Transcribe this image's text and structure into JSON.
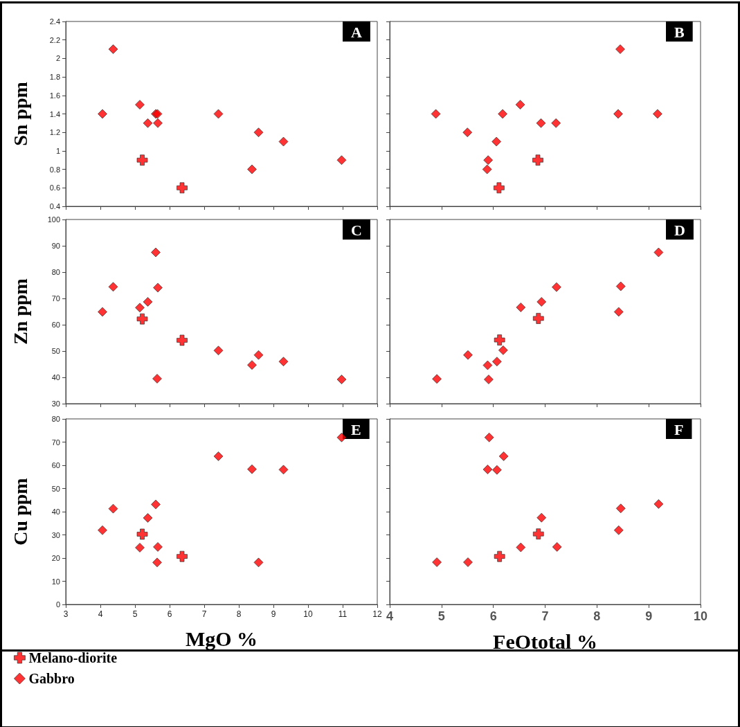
{
  "chart_data": [
    {
      "type": "scatter",
      "ylabel": "Sn ppm",
      "annotations": [
        "A"
      ],
      "xlim": [
        3,
        12
      ],
      "xticks": [
        3,
        4,
        5,
        6,
        7,
        8,
        9,
        10,
        11,
        12
      ],
      "ylim": [
        0.4,
        2.4
      ],
      "yticks": [
        0.4,
        0.6,
        0.8,
        1,
        1.2,
        1.4,
        1.6,
        1.8,
        2,
        2.2,
        2.4
      ],
      "tick_labels": "y",
      "grid": false,
      "series": [
        {
          "color": "#ff0000",
          "marker": "cross",
          "x": [
            5.21,
            6.36
          ],
          "values": [
            0.9,
            0.6
          ]
        },
        {
          "color": "#ff0000",
          "marker": "diamond",
          "x": [
            4.06,
            4.37,
            5.14,
            5.37,
            5.6,
            5.65,
            5.66,
            7.41,
            8.38,
            8.57,
            9.29,
            10.97
          ],
          "values": [
            1.4,
            2.1,
            1.5,
            1.3,
            1.4,
            1.4,
            1.3,
            1.4,
            0.8,
            1.2,
            1.1,
            0.9
          ]
        }
      ]
    },
    {
      "type": "scatter",
      "annotations": [
        "B"
      ],
      "xlim": [
        4,
        10
      ],
      "xticks": [
        4,
        5,
        6,
        7,
        8,
        9,
        10
      ],
      "ylim": [
        0.4,
        2.4
      ],
      "yticks": [
        0.4,
        0.6,
        0.8,
        1,
        1.2,
        1.4,
        1.6,
        1.8,
        2,
        2.2,
        2.4
      ],
      "tick_labels": false,
      "grid": false,
      "series": [
        {
          "color": "#ff0000",
          "marker": "cross",
          "x": [
            6.11,
            6.86
          ],
          "values": [
            0.6,
            0.9
          ]
        },
        {
          "color": "#ff0000",
          "marker": "diamond",
          "x": [
            4.89,
            5.5,
            5.88,
            5.9,
            6.06,
            6.18,
            6.52,
            6.92,
            7.21,
            8.41,
            8.45,
            9.17
          ],
          "values": [
            1.4,
            1.2,
            0.8,
            0.9,
            1.1,
            1.4,
            1.5,
            1.3,
            1.3,
            1.4,
            2.1,
            1.4
          ]
        }
      ]
    },
    {
      "type": "scatter",
      "ylabel": "Zn ppm",
      "annotations": [
        "C"
      ],
      "xlim": [
        3,
        12
      ],
      "xticks": [
        3,
        4,
        5,
        6,
        7,
        8,
        9,
        10,
        11,
        12
      ],
      "ylim": [
        30,
        100
      ],
      "yticks": [
        30,
        40,
        50,
        60,
        70,
        80,
        90,
        100
      ],
      "tick_labels": "y",
      "grid": false,
      "series": [
        {
          "color": "#ff0000",
          "marker": "cross",
          "x": [
            5.21,
            6.36
          ],
          "values": [
            62.2,
            54.1
          ]
        },
        {
          "color": "#ff0000",
          "marker": "diamond",
          "x": [
            4.06,
            4.37,
            5.14,
            5.37,
            5.6,
            5.66,
            5.64,
            7.41,
            8.38,
            8.57,
            9.29,
            10.97
          ],
          "values": [
            64.9,
            74.4,
            66.5,
            68.7,
            87.5,
            74.1,
            39.5,
            50.2,
            44.7,
            48.5,
            46,
            39.2
          ]
        }
      ]
    },
    {
      "type": "scatter",
      "annotations": [
        "D"
      ],
      "xlim": [
        4,
        10
      ],
      "xticks": [
        4,
        5,
        6,
        7,
        8,
        9,
        10
      ],
      "ylim": [
        30,
        100
      ],
      "yticks": [
        30,
        40,
        50,
        60,
        70,
        80,
        90,
        100
      ],
      "tick_labels": false,
      "grid": false,
      "series": [
        {
          "color": "#ff0000",
          "marker": "cross",
          "x": [
            6.12,
            6.87
          ],
          "values": [
            54.2,
            62.4
          ]
        },
        {
          "color": "#ff0000",
          "marker": "diamond",
          "x": [
            4.91,
            5.51,
            5.89,
            5.91,
            6.07,
            6.19,
            6.53,
            6.93,
            7.22,
            8.42,
            8.46,
            9.19
          ],
          "values": [
            39.4,
            48.5,
            44.6,
            39.2,
            46,
            50.3,
            66.6,
            68.7,
            74.3,
            64.9,
            74.6,
            87.5
          ]
        }
      ]
    },
    {
      "type": "scatter",
      "xlabel": "MgO %",
      "ylabel": "Cu ppm",
      "annotations": [
        "E"
      ],
      "xlim": [
        3,
        12
      ],
      "xticks": [
        3,
        4,
        5,
        6,
        7,
        8,
        9,
        10,
        11,
        12
      ],
      "ylim": [
        0,
        80
      ],
      "yticks": [
        0,
        10,
        20,
        30,
        40,
        50,
        60,
        70,
        80
      ],
      "grid": false,
      "legend": "bottom left",
      "series": [
        {
          "name": "Melano-diorite",
          "color": "#ff0000",
          "marker": "cross",
          "x": [
            5.21,
            6.36
          ],
          "values": [
            30.3,
            20.7
          ]
        },
        {
          "name": "Gabbro",
          "color": "#ff0000",
          "marker": "diamond",
          "x": [
            4.06,
            4.37,
            5.14,
            5.37,
            5.6,
            5.66,
            5.64,
            7.41,
            8.38,
            8.57,
            9.29,
            10.97
          ],
          "values": [
            32,
            41.3,
            24.5,
            37.3,
            43.1,
            24.8,
            18.1,
            63.9,
            58.3,
            18.1,
            58.1,
            72
          ]
        }
      ]
    },
    {
      "type": "scatter",
      "xlabel": "FeOtotal %",
      "annotations": [
        "F"
      ],
      "xlim": [
        4,
        10
      ],
      "xticks": [
        4,
        5,
        6,
        7,
        8,
        9,
        10
      ],
      "ylim": [
        0,
        80
      ],
      "yticks": [
        0,
        10,
        20,
        30,
        40,
        50,
        60,
        70,
        80
      ],
      "tick_labels": "x",
      "grid": false,
      "series": [
        {
          "color": "#ff0000",
          "marker": "cross",
          "x": [
            6.12,
            6.87
          ],
          "values": [
            20.7,
            30.4
          ]
        },
        {
          "color": "#ff0000",
          "marker": "diamond",
          "x": [
            4.91,
            5.51,
            5.89,
            5.92,
            6.07,
            6.2,
            6.53,
            6.93,
            7.23,
            8.42,
            8.46,
            9.19
          ],
          "values": [
            18.2,
            18.2,
            58.2,
            72,
            58,
            63.9,
            24.6,
            37.4,
            24.8,
            32,
            41.4,
            43.3
          ]
        }
      ]
    }
  ]
}
